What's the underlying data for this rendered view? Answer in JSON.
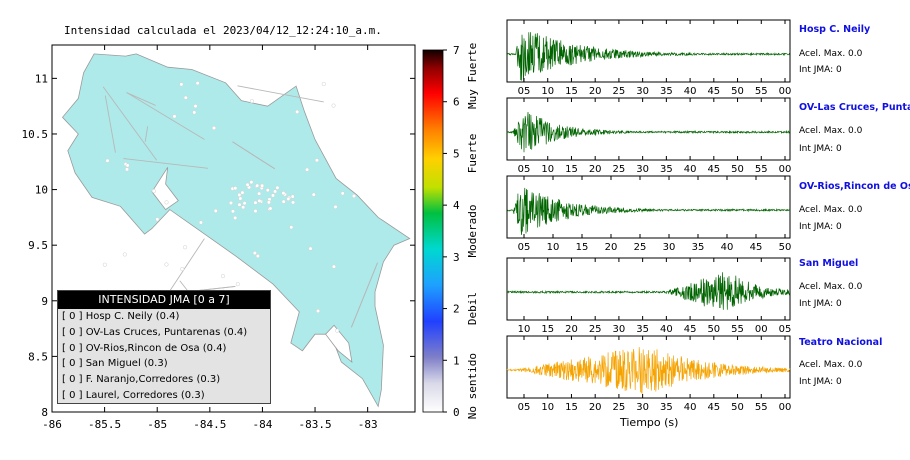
{
  "map": {
    "title": "Intensidad calculada el 2023/04/12_12:24:10_a.m.",
    "lon_ticks": [
      "-86",
      "-85.5",
      "-85",
      "-84.5",
      "-84",
      "-83.5",
      "-83"
    ],
    "lat_ticks": [
      "11",
      "10.5",
      "10",
      "9.5",
      "9",
      "8.5",
      "8"
    ]
  },
  "colorbar": {
    "ticks": [
      "0",
      "1",
      "2",
      "3",
      "4",
      "5",
      "6",
      "7"
    ],
    "labels": [
      "No sentido",
      "Debil",
      "Moderado",
      "Fuerte",
      "Muy Fuerte"
    ]
  },
  "legend": {
    "title": "INTENSIDAD JMA [0 a 7]",
    "rows": [
      "[ 0 ]  Hosp C. Neily (0.4)",
      "[ 0 ]  OV-Las Cruces, Puntarenas (0.4)",
      "[ 0 ]  OV-Rios,Rincon de Osa (0.4)",
      "[ 0 ]  San Miguel (0.3)",
      "[ 0 ]  F. Naranjo,Corredores (0.3)",
      "[ 0 ]  Laurel, Corredores (0.3)"
    ]
  },
  "stations": [
    {
      "name": "Hosp C. Neily",
      "acel": "Acel. Max. 0.0",
      "int": "Int JMA: 0",
      "color": "#006400",
      "ticks": [
        "05",
        "10",
        "15",
        "20",
        "25",
        "30",
        "35",
        "40",
        "45",
        "50",
        "55",
        "00"
      ]
    },
    {
      "name": "OV-Las Cruces, Puntarenas",
      "acel": "Acel. Max. 0.0",
      "int": "Int JMA: 0",
      "color": "#006400",
      "ticks": [
        "05",
        "10",
        "15",
        "20",
        "25",
        "30",
        "35",
        "40",
        "45",
        "50",
        "55",
        "00"
      ]
    },
    {
      "name": "OV-Rios,Rincon de Osa",
      "acel": "Acel. Max. 0.0",
      "int": "Int JMA: 0",
      "color": "#006400",
      "ticks": [
        "05",
        "10",
        "15",
        "20",
        "25",
        "30",
        "35",
        "40",
        "45",
        "50"
      ]
    },
    {
      "name": "San Miguel",
      "acel": "Acel. Max. 0.0",
      "int": "Int JMA: 0",
      "color": "#006400",
      "ticks": [
        "10",
        "15",
        "20",
        "25",
        "30",
        "35",
        "40",
        "45",
        "50",
        "55",
        "00",
        "05"
      ]
    },
    {
      "name": "Teatro Nacional",
      "acel": "Acel. Max. 0.0",
      "int": "Int JMA: 0",
      "color": "#f5a300",
      "ticks": [
        "05",
        "10",
        "15",
        "20",
        "25",
        "30",
        "35",
        "40",
        "45",
        "50",
        "55",
        "00"
      ]
    }
  ],
  "xaxis_title": "Tiempo (s)",
  "chart_data": [
    {
      "type": "map",
      "title": "Intensidad calculada el 2023/04/12_12:24:10_a.m.",
      "xlim": [
        -86,
        -82.55
      ],
      "ylim": [
        8,
        11.3
      ],
      "legend_title": "INTENSIDAD JMA [0 a 7]",
      "stations": [
        {
          "name": "Hosp C. Neily",
          "intensity": 0,
          "value": 0.4
        },
        {
          "name": "OV-Las Cruces, Puntarenas",
          "intensity": 0,
          "value": 0.4
        },
        {
          "name": "OV-Rios,Rincon de Osa",
          "intensity": 0,
          "value": 0.4
        },
        {
          "name": "San Miguel",
          "intensity": 0,
          "value": 0.3
        },
        {
          "name": "F. Naranjo,Corredores",
          "intensity": 0,
          "value": 0.3
        },
        {
          "name": "Laurel, Corredores",
          "intensity": 0,
          "value": 0.3
        }
      ],
      "colorbar": {
        "range": [
          0,
          7
        ],
        "labels": [
          "No sentido",
          "Debil",
          "Moderado",
          "Fuerte",
          "Muy Fuerte"
        ]
      }
    },
    {
      "type": "line",
      "title": "Hosp C. Neily",
      "xlabel": "Tiempo (s)",
      "envelope": {
        "onset_fraction": 0.03,
        "peak_fraction": 0.05,
        "decay": 0.18,
        "amplitude": 1.0
      }
    },
    {
      "type": "line",
      "title": "OV-Las Cruces, Puntarenas",
      "xlabel": "Tiempo (s)",
      "envelope": {
        "onset_fraction": 0.02,
        "peak_fraction": 0.06,
        "decay": 0.12,
        "amplitude": 0.8
      }
    },
    {
      "type": "line",
      "title": "OV-Rios,Rincon de Osa",
      "xlabel": "Tiempo (s)",
      "envelope": {
        "onset_fraction": 0.02,
        "peak_fraction": 0.05,
        "decay": 0.15,
        "amplitude": 0.9
      }
    },
    {
      "type": "line",
      "title": "San Miguel",
      "xlabel": "Tiempo (s)",
      "envelope": {
        "onset_fraction": 0.55,
        "peak_fraction": 0.78,
        "decay": 0.1,
        "amplitude": 0.75
      }
    },
    {
      "type": "line",
      "title": "Teatro Nacional",
      "xlabel": "Tiempo (s)",
      "envelope": {
        "onset_fraction": 0.02,
        "peak_fraction": 0.5,
        "decay": 0.2,
        "amplitude": 0.85
      }
    }
  ]
}
